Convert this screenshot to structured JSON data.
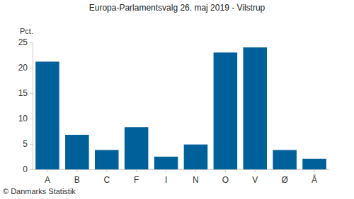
{
  "chart_data": {
    "type": "bar",
    "title": "Europa-Parlamentsvalg 26. maj 2019 - Vilstrup",
    "y_label": "Pct.",
    "source": "© Danmarks Statistik",
    "categories": [
      "A",
      "B",
      "C",
      "F",
      "I",
      "N",
      "O",
      "V",
      "Ø",
      "Å"
    ],
    "values": [
      21.2,
      6.8,
      3.8,
      8.3,
      2.5,
      4.9,
      23.0,
      24.0,
      3.8,
      2.1
    ],
    "color": "#00609a",
    "ylim": [
      0,
      25
    ],
    "yticks": [
      0,
      5,
      10,
      15,
      20,
      25
    ],
    "grid": false
  }
}
